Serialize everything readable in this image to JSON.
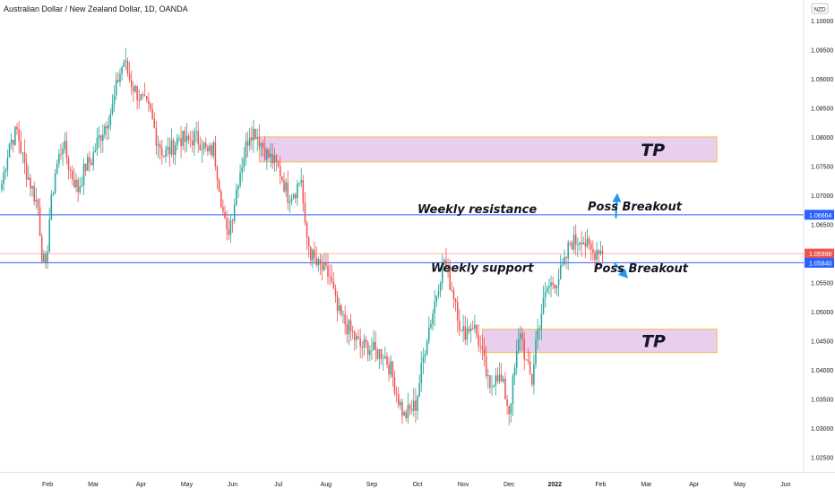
{
  "chart_data": {
    "type": "candlestick",
    "title": "Australian Dollar / New Zealand Dollar, 1D, OANDA",
    "currency_badge": "NZD",
    "grid": false,
    "ylim": [
      1.0225,
      1.1035
    ],
    "y_ticks": [
      "1.10000",
      "1.09500",
      "1.09000",
      "1.08500",
      "1.08000",
      "1.07500",
      "1.07000",
      "1.06500",
      "1.06000",
      "1.05500",
      "1.05000",
      "1.04500",
      "1.04000",
      "1.03500",
      "1.03000",
      "1.02500"
    ],
    "x_tick_labels": [
      "Feb",
      "Mar",
      "Apr",
      "May",
      "Jun",
      "Jul",
      "Aug",
      "Sep",
      "Oct",
      "Nov",
      "Dec",
      "2022",
      "Feb",
      "Mar",
      "Apr",
      "May",
      "Jun"
    ],
    "x_tick_index": [
      24,
      48,
      73,
      97,
      121,
      145,
      170,
      194,
      218,
      242,
      266,
      290,
      314,
      338,
      363,
      387,
      411
    ],
    "colors": {
      "up": "#26a69a",
      "down": "#ef5350",
      "level": "#2962ff",
      "zone_fill": "#e1bee7",
      "zone_border": "#ffb74d",
      "price_line": "#ef5350"
    },
    "levels": [
      {
        "name": "Weekly resistance",
        "value": 1.06664
      },
      {
        "name": "Weekly support",
        "value": 1.0584
      }
    ],
    "current_price": 1.05998,
    "zones": [
      {
        "label": "TP",
        "from_index": 135,
        "to_index": 375,
        "y_top": 1.08,
        "y_bottom": 1.0757
      },
      {
        "label": "TP",
        "from_index": 252,
        "to_index": 375,
        "y_top": 1.047,
        "y_bottom": 1.043
      }
    ],
    "annotations": [
      {
        "text": "Poss Breakout",
        "direction": "up",
        "index": 322,
        "price": 1.0682
      },
      {
        "text": "Poss Breakout",
        "direction": "down",
        "index": 326,
        "price": 1.0574
      }
    ],
    "anchors": [
      [
        0,
        1.072
      ],
      [
        4,
        1.079
      ],
      [
        8,
        1.081
      ],
      [
        12,
        1.075
      ],
      [
        16,
        1.071
      ],
      [
        19,
        1.068
      ],
      [
        21,
        1.06
      ],
      [
        23,
        1.057
      ],
      [
        25,
        1.066
      ],
      [
        28,
        1.074
      ],
      [
        32,
        1.079
      ],
      [
        36,
        1.074
      ],
      [
        40,
        1.071
      ],
      [
        44,
        1.075
      ],
      [
        47,
        1.076
      ],
      [
        50,
        1.079
      ],
      [
        54,
        1.082
      ],
      [
        58,
        1.085
      ],
      [
        61,
        1.09
      ],
      [
        64,
        1.093
      ],
      [
        67,
        1.09
      ],
      [
        70,
        1.088
      ],
      [
        74,
        1.086
      ],
      [
        78,
        1.084
      ],
      [
        81,
        1.08
      ],
      [
        85,
        1.077
      ],
      [
        89,
        1.078
      ],
      [
        93,
        1.08
      ],
      [
        97,
        1.079
      ],
      [
        101,
        1.08
      ],
      [
        105,
        1.079
      ],
      [
        108,
        1.077
      ],
      [
        111,
        1.078
      ],
      [
        114,
        1.072
      ],
      [
        116,
        1.067
      ],
      [
        118,
        1.063
      ],
      [
        121,
        1.067
      ],
      [
        124,
        1.073
      ],
      [
        127,
        1.077
      ],
      [
        130,
        1.081
      ],
      [
        133,
        1.081
      ],
      [
        136,
        1.079
      ],
      [
        139,
        1.077
      ],
      [
        142,
        1.076
      ],
      [
        146,
        1.074
      ],
      [
        150,
        1.07
      ],
      [
        154,
        1.071
      ],
      [
        157,
        1.073
      ],
      [
        159,
        1.064
      ],
      [
        162,
        1.06
      ],
      [
        165,
        1.058
      ],
      [
        169,
        1.057
      ],
      [
        172,
        1.056
      ],
      [
        176,
        1.05
      ],
      [
        180,
        1.048
      ],
      [
        184,
        1.046
      ],
      [
        188,
        1.044
      ],
      [
        192,
        1.044
      ],
      [
        196,
        1.043
      ],
      [
        200,
        1.043
      ],
      [
        204,
        1.04
      ],
      [
        208,
        1.035
      ],
      [
        211,
        1.032
      ],
      [
        214,
        1.033
      ],
      [
        217,
        1.034
      ],
      [
        220,
        1.04
      ],
      [
        223,
        1.046
      ],
      [
        226,
        1.05
      ],
      [
        229,
        1.055
      ],
      [
        232,
        1.059
      ],
      [
        235,
        1.055
      ],
      [
        238,
        1.052
      ],
      [
        241,
        1.046
      ],
      [
        244,
        1.047
      ],
      [
        247,
        1.048
      ],
      [
        250,
        1.045
      ],
      [
        253,
        1.041
      ],
      [
        256,
        1.036
      ],
      [
        259,
        1.04
      ],
      [
        263,
        1.037
      ],
      [
        266,
        1.033
      ],
      [
        269,
        1.04
      ],
      [
        272,
        1.047
      ],
      [
        275,
        1.041
      ],
      [
        278,
        1.038
      ],
      [
        280,
        1.045
      ],
      [
        283,
        1.05
      ],
      [
        286,
        1.054
      ],
      [
        289,
        1.055
      ],
      [
        292,
        1.056
      ],
      [
        295,
        1.058
      ],
      [
        298,
        1.062
      ],
      [
        301,
        1.062
      ],
      [
        304,
        1.063
      ],
      [
        307,
        1.061
      ],
      [
        310,
        1.06
      ],
      [
        313,
        1.061
      ],
      [
        315,
        1.06
      ]
    ]
  }
}
